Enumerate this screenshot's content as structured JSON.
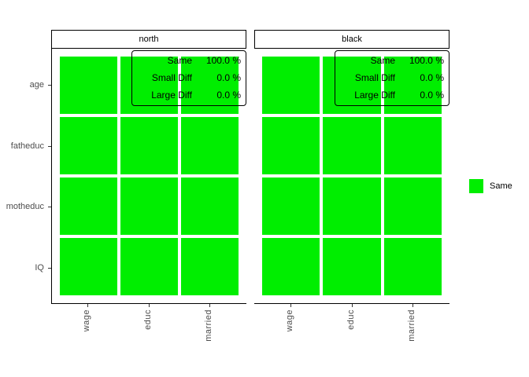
{
  "chart_data": {
    "type": "heatmap",
    "title": "",
    "facets": [
      "north",
      "black"
    ],
    "x_categories": [
      "wage",
      "educ",
      "married"
    ],
    "y_categories_top_to_bottom": [
      "age",
      "fatheduc",
      "motheduc",
      "IQ"
    ],
    "cell_values": {
      "north": [
        [
          "Same",
          "Same",
          "Same"
        ],
        [
          "Same",
          "Same",
          "Same"
        ],
        [
          "Same",
          "Same",
          "Same"
        ],
        [
          "Same",
          "Same",
          "Same"
        ]
      ],
      "black": [
        [
          "Same",
          "Same",
          "Same"
        ],
        [
          "Same",
          "Same",
          "Same"
        ],
        [
          "Same",
          "Same",
          "Same"
        ],
        [
          "Same",
          "Same",
          "Same"
        ]
      ]
    },
    "annotations": {
      "north": {
        "Same": "100.0 %",
        "Small Diff": "0.0 %",
        "Large Diff": "0.0 %"
      },
      "black": {
        "Same": "100.0 %",
        "Small Diff": "0.0 %",
        "Large Diff": "0.0 %"
      }
    },
    "legend_entries": [
      "Same"
    ],
    "legend_position": "right",
    "grid": false
  },
  "figure": {
    "colors": {
      "tile": "#00ee00",
      "border": "#000000",
      "axis_text": "#4d4d4d",
      "background": "#ffffff"
    },
    "facets": [
      {
        "label": "north",
        "annotation": [
          {
            "label": "Same",
            "value": "100.0 %"
          },
          {
            "label": "Small Diff",
            "value": "0.0 %"
          },
          {
            "label": "Large Diff",
            "value": "0.0 %"
          }
        ]
      },
      {
        "label": "black",
        "annotation": [
          {
            "label": "Same",
            "value": "100.0 %"
          },
          {
            "label": "Small Diff",
            "value": "0.0 %"
          },
          {
            "label": "Large Diff",
            "value": "0.0 %"
          }
        ]
      }
    ],
    "y_labels": [
      "age",
      "fatheduc",
      "motheduc",
      "IQ"
    ],
    "x_labels": [
      "wage",
      "educ",
      "married"
    ],
    "legend": {
      "label": "Same"
    }
  }
}
